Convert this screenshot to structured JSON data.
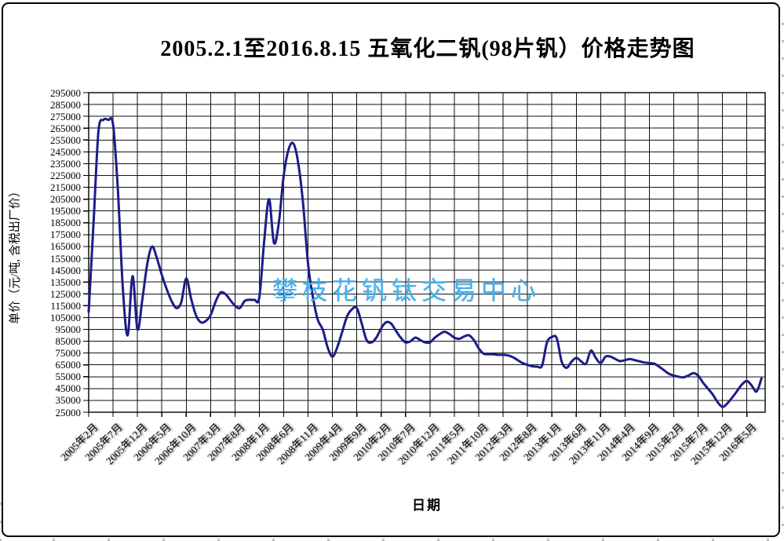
{
  "watermark": {
    "text": "攀枝花钒钛交易中心",
    "color": "#46b0ea"
  },
  "chart_data": {
    "type": "line",
    "title": "2005.2.1至2016.8.15  五氧化二钒(98片钒）价格走势图",
    "xlabel": "日期",
    "ylabel": "单价（元/吨, 含税出厂价）",
    "ylim": [
      25000,
      295000
    ],
    "y_tick_step": 10000,
    "grid": true,
    "legend": "none",
    "line_color": "#1c1c8a",
    "grid_color": "#111111",
    "y_ticks": [
      295000,
      285000,
      275000,
      265000,
      255000,
      245000,
      235000,
      225000,
      215000,
      205000,
      195000,
      185000,
      175000,
      165000,
      155000,
      145000,
      135000,
      125000,
      115000,
      105000,
      95000,
      85000,
      75000,
      65000,
      55000,
      45000,
      35000,
      25000
    ],
    "x_tick_labels": [
      "2005年2月",
      "2005年7月",
      "2005年12月",
      "2006年5月",
      "2006年10月",
      "2007年3月",
      "2007年8月",
      "2008年1月",
      "2008年6月",
      "2008年11月",
      "2009年4月",
      "2009年9月",
      "2010年2月",
      "2010年7月",
      "2010年12月",
      "2011年5月",
      "2011年10月",
      "2012年3月",
      "2012年8月",
      "2013年1月",
      "2013年6月",
      "2013年11月",
      "2014年4月",
      "2014年9月",
      "2015年2月",
      "2015年7月",
      "2015年12月",
      "2016年5月"
    ],
    "series": [
      {
        "start_month": "2005-02",
        "end_month": "2016-08",
        "interval": "monthly",
        "unit": "元/吨",
        "values": [
          110000,
          185000,
          262000,
          272000,
          272000,
          268000,
          212000,
          130000,
          90000,
          140000,
          95000,
          120000,
          150000,
          165000,
          155000,
          141000,
          129000,
          119000,
          113000,
          118000,
          138000,
          121000,
          107000,
          101000,
          102000,
          107000,
          118000,
          126000,
          125000,
          120000,
          115000,
          113000,
          119000,
          120000,
          120000,
          122000,
          170000,
          205000,
          168000,
          185000,
          225000,
          247000,
          252000,
          235000,
          200000,
          150000,
          122000,
          103000,
          95000,
          80000,
          72000,
          80000,
          93000,
          106000,
          112000,
          113000,
          100000,
          86000,
          84000,
          88000,
          96000,
          101000,
          100000,
          94000,
          88000,
          84000,
          85000,
          88000,
          86000,
          84000,
          84000,
          88000,
          91000,
          93000,
          91000,
          88000,
          87000,
          89000,
          90000,
          86000,
          79000,
          74500,
          74000,
          74000,
          73500,
          73500,
          73000,
          71500,
          69000,
          66500,
          65000,
          63800,
          63500,
          64500,
          84000,
          88500,
          87500,
          68000,
          62500,
          67500,
          71000,
          68000,
          66000,
          77000,
          71000,
          66500,
          72000,
          72000,
          70000,
          68200,
          69000,
          70000,
          69000,
          68000,
          67000,
          66500,
          66000,
          63500,
          60500,
          57500,
          56000,
          55000,
          54500,
          56000,
          58000,
          56000,
          50000,
          45000,
          40000,
          33500,
          29500,
          32500,
          37500,
          43000,
          48500,
          51500,
          47500,
          42500,
          53500
        ]
      }
    ]
  }
}
